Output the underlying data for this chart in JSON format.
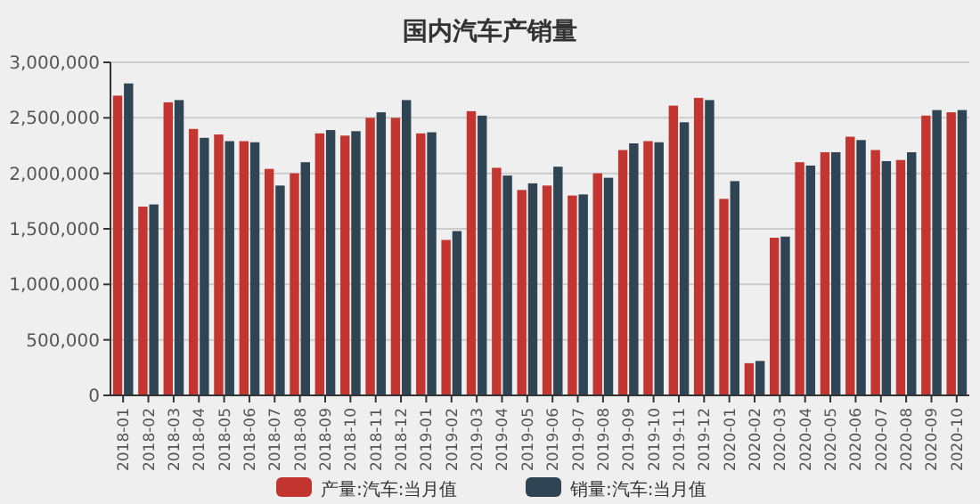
{
  "chart_data": {
    "type": "bar",
    "title": "国内汽车产销量",
    "categories": [
      "2018-01",
      "2018-02",
      "2018-03",
      "2018-04",
      "2018-05",
      "2018-06",
      "2018-07",
      "2018-08",
      "2018-09",
      "2018-10",
      "2018-11",
      "2018-12",
      "2019-01",
      "2019-02",
      "2019-03",
      "2019-04",
      "2019-05",
      "2019-06",
      "2019-07",
      "2019-08",
      "2019-09",
      "2019-10",
      "2019-11",
      "2019-12",
      "2020-01",
      "2020-02",
      "2020-03",
      "2020-04",
      "2020-05",
      "2020-06",
      "2020-07",
      "2020-08",
      "2020-09",
      "2020-10"
    ],
    "series": [
      {
        "name": "产量:汽车:当月值",
        "color": "#c23531",
        "values": [
          2700000,
          1700000,
          2640000,
          2400000,
          2350000,
          2290000,
          2040000,
          2000000,
          2360000,
          2340000,
          2500000,
          2500000,
          2360000,
          1400000,
          2560000,
          2050000,
          1850000,
          1890000,
          1800000,
          2000000,
          2210000,
          2290000,
          2610000,
          2680000,
          1770000,
          290000,
          1420000,
          2100000,
          2190000,
          2330000,
          2210000,
          2120000,
          2520000,
          2550000
        ]
      },
      {
        "name": "销量:汽车:当月值",
        "color": "#2f4554",
        "values": [
          2810000,
          1720000,
          2660000,
          2320000,
          2290000,
          2280000,
          1890000,
          2100000,
          2390000,
          2380000,
          2550000,
          2660000,
          2370000,
          1480000,
          2520000,
          1980000,
          1910000,
          2060000,
          1810000,
          1960000,
          2270000,
          2280000,
          2460000,
          2660000,
          1930000,
          310000,
          1430000,
          2070000,
          2190000,
          2300000,
          2110000,
          2190000,
          2570000,
          2570000
        ]
      }
    ],
    "ylim": [
      0,
      3000000
    ],
    "yticks": [
      {
        "value": 0,
        "label": "0"
      },
      {
        "value": 500000,
        "label": "500,000"
      },
      {
        "value": 1000000,
        "label": "1,000,000"
      },
      {
        "value": 1500000,
        "label": "1,500,000"
      },
      {
        "value": 2000000,
        "label": "2,000,000"
      },
      {
        "value": 2500000,
        "label": "2,500,000"
      },
      {
        "value": 3000000,
        "label": "3,000,000"
      }
    ],
    "grid": "y",
    "legend": "bottom"
  }
}
